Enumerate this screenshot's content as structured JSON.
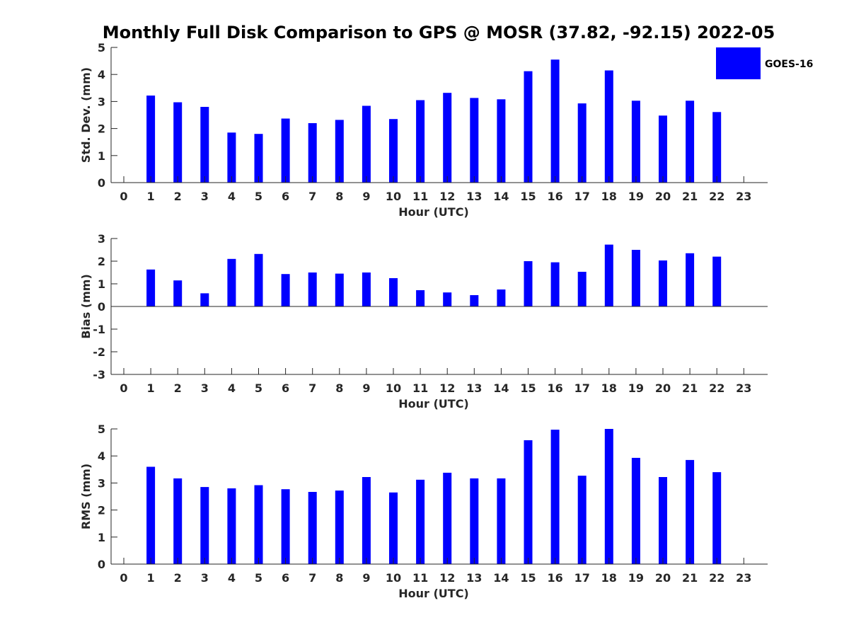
{
  "title": "Monthly Full Disk Comparison to GPS @ MOSR (37.82, -92.15) 2022-05",
  "legend": {
    "label": "GOES-16",
    "color": "#0000ff"
  },
  "colors": {
    "bar": "#0000ff",
    "axis": "#262626"
  },
  "chart_data": [
    {
      "id": "std",
      "type": "bar",
      "title": "Monthly Full Disk Comparison to GPS @ MOSR (37.82, -92.15) 2022-05",
      "xlabel": "Hour (UTC)",
      "ylabel": "Std. Dev. (mm)",
      "ylim": [
        0,
        5
      ],
      "yticks": [
        "0",
        "1",
        "2",
        "3",
        "4",
        "5"
      ],
      "categories": [
        "0",
        "1",
        "2",
        "3",
        "4",
        "5",
        "6",
        "7",
        "8",
        "9",
        "10",
        "11",
        "12",
        "13",
        "14",
        "15",
        "16",
        "17",
        "18",
        "19",
        "20",
        "21",
        "22",
        "23"
      ],
      "series": [
        {
          "name": "GOES-16",
          "values": [
            null,
            3.22,
            2.97,
            2.8,
            1.85,
            1.8,
            2.37,
            2.2,
            2.32,
            2.84,
            2.35,
            3.05,
            3.32,
            3.13,
            3.08,
            4.12,
            4.55,
            2.93,
            4.15,
            3.03,
            2.48,
            3.03,
            2.61,
            null
          ]
        }
      ]
    },
    {
      "id": "bias",
      "type": "bar",
      "xlabel": "Hour (UTC)",
      "ylabel": "Bias (mm)",
      "ylim": [
        -3,
        3
      ],
      "yticks": [
        "-3",
        "-2",
        "-1",
        "0",
        "1",
        "2",
        "3"
      ],
      "categories": [
        "0",
        "1",
        "2",
        "3",
        "4",
        "5",
        "6",
        "7",
        "8",
        "9",
        "10",
        "11",
        "12",
        "13",
        "14",
        "15",
        "16",
        "17",
        "18",
        "19",
        "20",
        "21",
        "22",
        "23"
      ],
      "series": [
        {
          "name": "GOES-16",
          "values": [
            null,
            1.63,
            1.15,
            0.58,
            2.1,
            2.32,
            1.43,
            1.5,
            1.45,
            1.5,
            1.25,
            0.72,
            0.62,
            0.5,
            0.75,
            2.0,
            1.95,
            1.53,
            2.73,
            2.5,
            2.03,
            2.35,
            2.2,
            null
          ]
        }
      ]
    },
    {
      "id": "rms",
      "type": "bar",
      "xlabel": "Hour (UTC)",
      "ylabel": "RMS (mm)",
      "ylim": [
        0,
        5
      ],
      "yticks": [
        "0",
        "1",
        "2",
        "3",
        "4",
        "5"
      ],
      "categories": [
        "0",
        "1",
        "2",
        "3",
        "4",
        "5",
        "6",
        "7",
        "8",
        "9",
        "10",
        "11",
        "12",
        "13",
        "14",
        "15",
        "16",
        "17",
        "18",
        "19",
        "20",
        "21",
        "22",
        "23"
      ],
      "series": [
        {
          "name": "GOES-16",
          "values": [
            null,
            3.6,
            3.17,
            2.85,
            2.8,
            2.92,
            2.77,
            2.67,
            2.72,
            3.22,
            2.65,
            3.12,
            3.38,
            3.17,
            3.17,
            4.58,
            4.97,
            3.27,
            5.0,
            3.93,
            3.22,
            3.85,
            3.4,
            null
          ]
        }
      ]
    }
  ]
}
